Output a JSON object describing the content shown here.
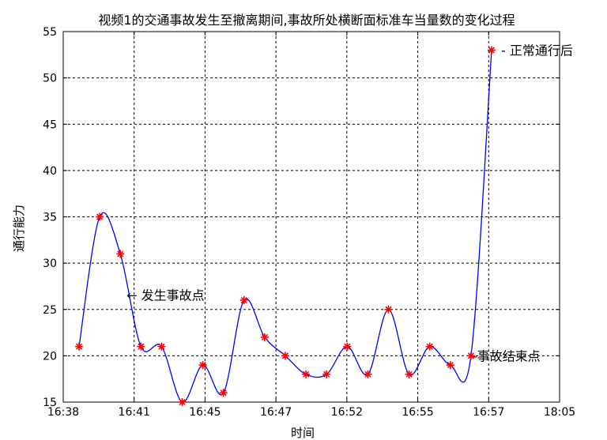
{
  "chart_data": {
    "type": "line",
    "title": "视频1的交通事故发生至撤离期间,事故所处横断面标准车当量数的变化过程",
    "xlabel": "时间",
    "ylabel": "通行能力",
    "x_tick_labels": [
      "16:38",
      "16:41",
      "16:45",
      "16:47",
      "16:52",
      "16:55",
      "16:57",
      "18:05"
    ],
    "ylim": [
      15,
      55
    ],
    "y_ticks": [
      15,
      20,
      25,
      30,
      35,
      40,
      45,
      50,
      55
    ],
    "grid": true,
    "series": [
      {
        "values": [
          21,
          35,
          31,
          21,
          21,
          15,
          19,
          16,
          26,
          22,
          20,
          18,
          18,
          21,
          18,
          25,
          18,
          21,
          19,
          20,
          53
        ],
        "color": "#0000ff",
        "marker_color": "#ff0000",
        "marker": "asterisk"
      }
    ],
    "annotations": [
      {
        "text": "← 发生事故点",
        "index": 2
      },
      {
        "text": "- 正常通行后",
        "index": 20
      },
      {
        "text": "-事故结束点",
        "index": 19
      }
    ]
  }
}
